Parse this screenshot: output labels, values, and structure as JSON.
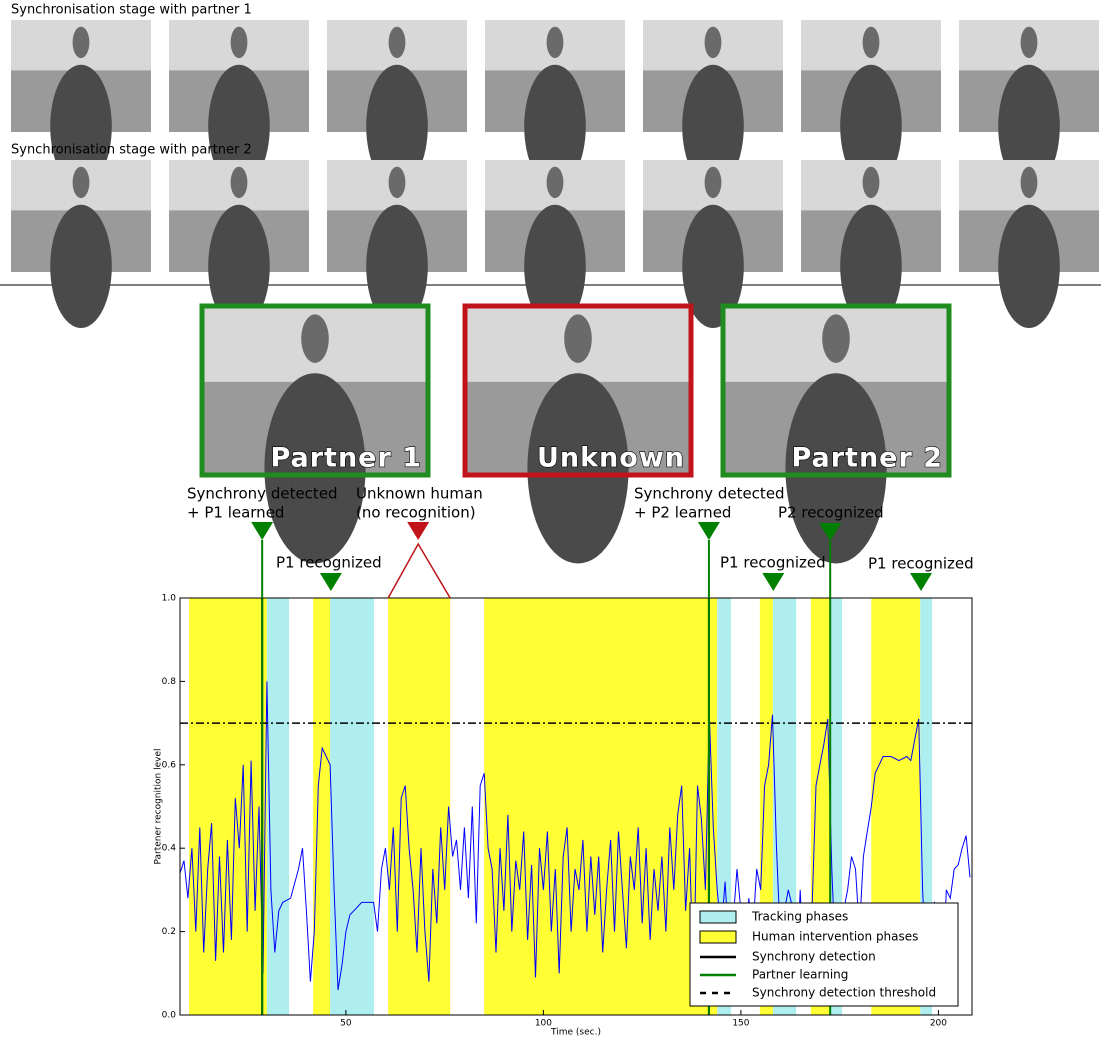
{
  "header_rows": [
    {
      "title": "Synchronisation stage with partner 1"
    },
    {
      "title": "Synchronisation stage with partner 2"
    }
  ],
  "portraits": [
    {
      "label": "Partner 1",
      "color": "#1e8c1e"
    },
    {
      "label": "Unknown",
      "color": "#c0141a"
    },
    {
      "label": "Partner 2",
      "color": "#1e8c1e"
    }
  ],
  "chart_data": {
    "type": "line",
    "xlabel": "Time (sec.)",
    "ylabel": "Partener recognition level",
    "xlim": [
      8,
      208.5
    ],
    "ylim": [
      0,
      1
    ],
    "xticks": [
      50,
      100,
      150,
      200
    ],
    "yticks": [
      {
        "value": 0,
        "label": "0.0"
      },
      0.2,
      0.4,
      0.6,
      {
        "value": 0.8,
        "label": "0.8"
      },
      {
        "value": 1,
        "label": "1.0"
      }
    ],
    "x": [
      8,
      9,
      10,
      11,
      12,
      13,
      14,
      15,
      16,
      17,
      18,
      19,
      20,
      21,
      22,
      23,
      24,
      25,
      26,
      27,
      28,
      29,
      30,
      31,
      32,
      33,
      34,
      36,
      38,
      39,
      40,
      41,
      42,
      43,
      44,
      45,
      46,
      47,
      48,
      49,
      50,
      51,
      52,
      54,
      57,
      58,
      59,
      60,
      61,
      62,
      63,
      64,
      65,
      66,
      67,
      68,
      69,
      70,
      71,
      72,
      73,
      74,
      75,
      76,
      77,
      78,
      79,
      80,
      81,
      82,
      83,
      84,
      85,
      86,
      87,
      88,
      89,
      90,
      91,
      92,
      93,
      94,
      95,
      96,
      97,
      98,
      99,
      100,
      101,
      102,
      103,
      104,
      105,
      106,
      107,
      108,
      109,
      110,
      111,
      112,
      113,
      114,
      115,
      116,
      117,
      118,
      119,
      120,
      121,
      122,
      123,
      124,
      125,
      126,
      127,
      128,
      129,
      130,
      131,
      132,
      133,
      134,
      135,
      136,
      137,
      138,
      139,
      140,
      141,
      142,
      143,
      144,
      145,
      146,
      147,
      148,
      149,
      150,
      151,
      152,
      153,
      154,
      155,
      156,
      157,
      158,
      159,
      160,
      161,
      162,
      163,
      164,
      165,
      166,
      167,
      168,
      169,
      170,
      171,
      172,
      173,
      174,
      175,
      176,
      177,
      178,
      179,
      180,
      181,
      182,
      183,
      184,
      185,
      186,
      188,
      190,
      192,
      193,
      194,
      195,
      196,
      197,
      198,
      199,
      200,
      201,
      202,
      203,
      204,
      205,
      206,
      207,
      208
    ],
    "series": [
      {
        "color": "#0000ff",
        "values": [
          0.34,
          0.37,
          0.28,
          0.4,
          0.2,
          0.45,
          0.15,
          0.35,
          0.46,
          0.13,
          0.38,
          0.15,
          0.42,
          0.18,
          0.52,
          0.4,
          0.6,
          0.2,
          0.61,
          0.25,
          0.5,
          0.1,
          0.8,
          0.3,
          0.15,
          0.25,
          0.27,
          0.28,
          0.35,
          0.4,
          0.25,
          0.08,
          0.2,
          0.55,
          0.64,
          0.62,
          0.6,
          0.3,
          0.06,
          0.12,
          0.2,
          0.24,
          0.25,
          0.27,
          0.27,
          0.2,
          0.35,
          0.4,
          0.3,
          0.45,
          0.2,
          0.52,
          0.55,
          0.4,
          0.3,
          0.15,
          0.4,
          0.2,
          0.08,
          0.35,
          0.22,
          0.45,
          0.3,
          0.5,
          0.38,
          0.42,
          0.3,
          0.45,
          0.28,
          0.5,
          0.22,
          0.55,
          0.58,
          0.4,
          0.35,
          0.15,
          0.4,
          0.25,
          0.48,
          0.2,
          0.37,
          0.3,
          0.44,
          0.18,
          0.36,
          0.09,
          0.4,
          0.3,
          0.44,
          0.2,
          0.35,
          0.1,
          0.38,
          0.45,
          0.2,
          0.35,
          0.3,
          0.42,
          0.2,
          0.38,
          0.24,
          0.38,
          0.15,
          0.3,
          0.42,
          0.2,
          0.44,
          0.3,
          0.16,
          0.38,
          0.3,
          0.45,
          0.22,
          0.4,
          0.18,
          0.35,
          0.25,
          0.38,
          0.2,
          0.45,
          0.3,
          0.48,
          0.55,
          0.25,
          0.4,
          0.08,
          0.55,
          0.47,
          0.3,
          0.72,
          0.45,
          0.3,
          0.2,
          0.32,
          0.15,
          0.22,
          0.35,
          0.25,
          0.1,
          0.28,
          0.2,
          0.35,
          0.3,
          0.55,
          0.6,
          0.72,
          0.4,
          0.18,
          0.25,
          0.3,
          0.26,
          0.08,
          0.3,
          0.1,
          0.15,
          0.25,
          0.55,
          0.6,
          0.65,
          0.71,
          0.35,
          0.12,
          0.08,
          0.25,
          0.3,
          0.38,
          0.35,
          0.2,
          0.38,
          0.44,
          0.5,
          0.58,
          0.6,
          0.62,
          0.62,
          0.61,
          0.62,
          0.61,
          0.66,
          0.71,
          0.3,
          0.1,
          0.26,
          0.27,
          0.15,
          0.05,
          0.3,
          0.28,
          0.35,
          0.36,
          0.4,
          0.43,
          0.33
        ]
      }
    ],
    "spans": [
      {
        "name": "Tracking phases",
        "color": "#aeeeee",
        "intervals": [
          [
            30,
            35.6
          ],
          [
            46,
            57.1
          ],
          [
            144,
            147.5
          ],
          [
            158.1,
            164
          ],
          [
            172.8,
            175.6
          ],
          [
            195.4,
            198.4
          ]
        ]
      },
      {
        "name": "Human intervention phases",
        "color": "#ffff33",
        "intervals": [
          [
            10.3,
            30
          ],
          [
            41.7,
            46
          ],
          [
            60.7,
            76.4
          ],
          [
            85,
            144
          ],
          [
            154.8,
            158.1
          ],
          [
            167.7,
            172.8
          ],
          [
            183,
            195.4
          ]
        ]
      }
    ],
    "vlines": [
      {
        "name": "Synchrony detection",
        "color": "#000000",
        "x": [
          28.8,
          141.9
        ]
      },
      {
        "name": "Partner learning",
        "color": "#008000",
        "x": [
          28.8,
          141.9,
          172.6
        ]
      }
    ],
    "hlines": [
      {
        "name": "Synchrony detection threshold",
        "color": "#000000",
        "y": 0.7
      }
    ],
    "annotations": [
      {
        "lines": [
          "Synchrony detected",
          "+ P1 learned"
        ],
        "x": 28.8,
        "color": "#008000"
      },
      {
        "lines": [
          "P1 recognized"
        ],
        "x": 46.2,
        "color": "#008000"
      },
      {
        "lines": [
          "Unknown human",
          "(no recognition)"
        ],
        "x": 68.3,
        "color": "#c0141a",
        "span": [
          60.7,
          76.4
        ]
      },
      {
        "lines": [
          "Synchrony detected",
          "+ P2 learned"
        ],
        "x": 141.9,
        "color": "#008000"
      },
      {
        "lines": [
          "P1 recognized"
        ],
        "x": 158.2,
        "color": "#008000"
      },
      {
        "lines": [
          "P2 recognized"
        ],
        "x": 172.6,
        "color": "#008000"
      },
      {
        "lines": [
          "P1 recognized"
        ],
        "x": 195.6,
        "color": "#008000"
      }
    ]
  }
}
